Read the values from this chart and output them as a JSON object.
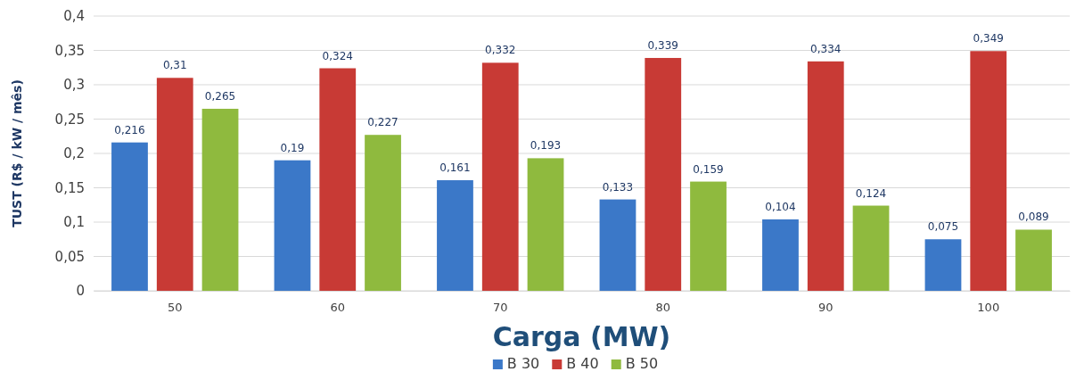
{
  "chart_data": {
    "type": "bar",
    "xlabel": "Carga (MW)",
    "ylabel": "TUST (R$ / kW / mês)",
    "categories": [
      "50",
      "60",
      "70",
      "80",
      "90",
      "100"
    ],
    "series": [
      {
        "name": "B 30",
        "color": "#3b78c8",
        "values": [
          0.216,
          0.19,
          0.161,
          0.133,
          0.104,
          0.075
        ],
        "value_labels": [
          "0,216",
          "0,19",
          "0,161",
          "0,133",
          "0,104",
          "0,075"
        ]
      },
      {
        "name": "B 40",
        "color": "#c83a35",
        "values": [
          0.31,
          0.324,
          0.332,
          0.339,
          0.334,
          0.349
        ],
        "value_labels": [
          "0,31",
          "0,324",
          "0,332",
          "0,339",
          "0,334",
          "0,349"
        ]
      },
      {
        "name": "B 50",
        "color": "#8fba3e",
        "values": [
          0.265,
          0.227,
          0.193,
          0.159,
          0.124,
          0.089
        ],
        "value_labels": [
          "0,265",
          "0,227",
          "0,193",
          "0,159",
          "0,124",
          "0,089"
        ]
      }
    ],
    "ylim": [
      0,
      0.4
    ],
    "yticks": [
      0,
      {
        "value": 0.05,
        "label": "0,05"
      },
      {
        "value": 0.1,
        "label": "0,1"
      },
      {
        "value": 0.15,
        "label": "0,15"
      },
      {
        "value": 0.2,
        "label": "0,2"
      },
      {
        "value": 0.25,
        "label": "0,25"
      },
      {
        "value": 0.3,
        "label": "0,3"
      },
      {
        "value": 0.35,
        "label": "0,35"
      },
      {
        "value": 0.4,
        "label": "0,4"
      }
    ],
    "grid": "y",
    "legend": "bottom"
  }
}
